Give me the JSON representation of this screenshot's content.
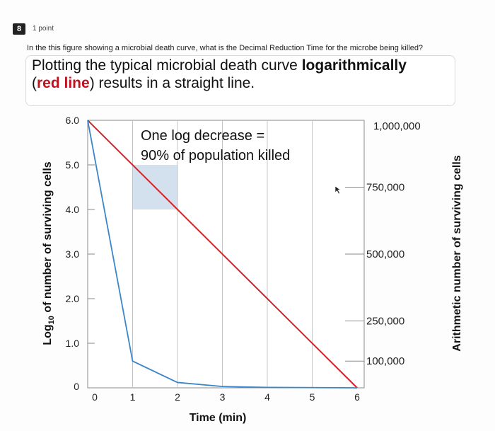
{
  "question": {
    "number": "8",
    "points": "1 point",
    "text": "In the this figure showing a microbial death curve, what is the Decimal Reduction Time for the microbe being killed?"
  },
  "headline": {
    "line1_a": "Plotting the typical microbial death curve ",
    "line1_b": "logarithmically",
    "line2_a": "(",
    "line2_b": "red line",
    "line2_c": ") results in a straight line."
  },
  "chart_data": {
    "type": "line",
    "xlabel": "Time (min)",
    "ylabel_left_prefix": "Log",
    "ylabel_left_sub": "10",
    "ylabel_left_suffix": " of number of surviving cells",
    "ylabel_right": "Arithmetic number of surviving cells",
    "xlim": [
      0,
      6
    ],
    "ylim": [
      0,
      6
    ],
    "x_ticks": [
      "0",
      "1",
      "2",
      "3",
      "4",
      "5",
      "6"
    ],
    "y_ticks_left": [
      {
        "value": 0,
        "label": "0"
      },
      {
        "value": 1,
        "label": "1.0"
      },
      {
        "value": 2,
        "label": "2.0"
      },
      {
        "value": 3,
        "label": "3.0"
      },
      {
        "value": 4,
        "label": "4.0"
      },
      {
        "value": 5,
        "label": "5.0"
      },
      {
        "value": 6,
        "label": "6.0"
      }
    ],
    "y_ticks_right": [
      {
        "value": 100000,
        "label": "100,000"
      },
      {
        "value": 250000,
        "label": "250,000"
      },
      {
        "value": 500000,
        "label": "500,000"
      },
      {
        "value": 750000,
        "label": "750,000"
      },
      {
        "value": 1000000,
        "label": "1,000,000"
      }
    ],
    "right_axis_max": 1000000,
    "annotation_line1": "One log decrease =",
    "annotation_line2": "90% of population killed",
    "highlight_x": [
      1,
      2
    ],
    "highlight_y": [
      4,
      5
    ],
    "series": [
      {
        "color": "#d2232a",
        "points": [
          [
            0,
            6
          ],
          [
            6,
            0
          ]
        ]
      },
      {
        "color": "#3a86c8",
        "points": [
          [
            0,
            6
          ],
          [
            1,
            0.6
          ],
          [
            2,
            0.12
          ],
          [
            3,
            0.03
          ],
          [
            4,
            0.01
          ],
          [
            6,
            0
          ]
        ]
      }
    ]
  }
}
